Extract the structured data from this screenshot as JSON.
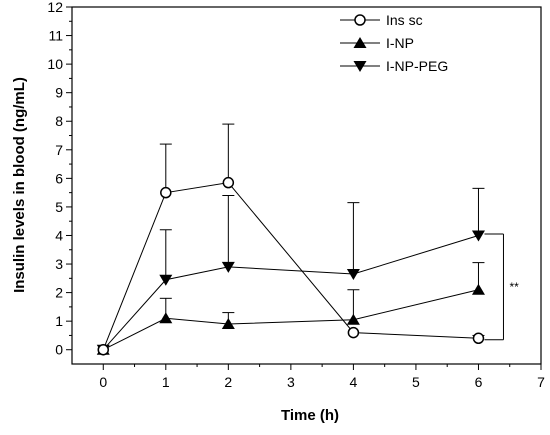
{
  "chart_data": {
    "type": "line",
    "xlabel": "Time (h)",
    "ylabel": "Insulin levels in blood (ng/mL)",
    "xlim": [
      -0.5,
      7
    ],
    "ylim": [
      -0.5,
      12
    ],
    "x_ticks": [
      0,
      1,
      2,
      3,
      4,
      5,
      6,
      7
    ],
    "y_ticks": [
      0,
      1,
      2,
      3,
      4,
      5,
      6,
      7,
      8,
      9,
      10,
      11,
      12
    ],
    "legend_position": "top-right",
    "series": [
      {
        "name": "Ins sc",
        "marker": "circle-open",
        "x": [
          0,
          1,
          2,
          4,
          6
        ],
        "y": [
          0,
          5.5,
          5.85,
          0.6,
          0.4
        ],
        "err_up": [
          0,
          1.7,
          2.05,
          0,
          0.1
        ]
      },
      {
        "name": "I-NP",
        "marker": "triangle-up",
        "x": [
          0,
          1,
          2,
          4,
          6
        ],
        "y": [
          0,
          1.1,
          0.9,
          1.05,
          2.1
        ],
        "err_up": [
          0,
          0.7,
          0.4,
          1.05,
          0.95
        ]
      },
      {
        "name": "I-NP-PEG",
        "marker": "triangle-down",
        "x": [
          0,
          1,
          2,
          4,
          6
        ],
        "y": [
          0,
          2.45,
          2.9,
          2.65,
          4.0
        ],
        "err_up": [
          0,
          1.75,
          2.5,
          2.5,
          1.65
        ]
      }
    ],
    "annotation": {
      "text": "**",
      "x_anchor": 6,
      "y_range": [
        0.35,
        4.05
      ]
    }
  }
}
